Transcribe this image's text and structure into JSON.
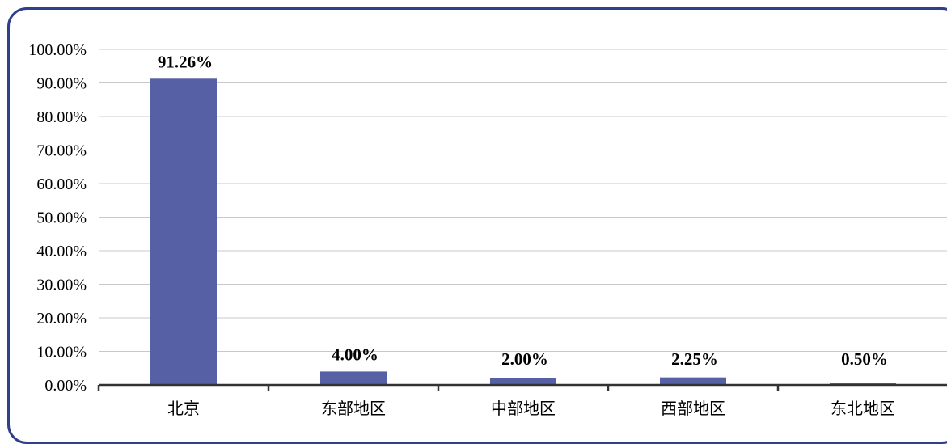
{
  "chart_data": {
    "type": "bar",
    "categories": [
      "北京",
      "东部地区",
      "中部地区",
      "西部地区",
      "东北地区"
    ],
    "values": [
      91.26,
      4.0,
      2.0,
      2.25,
      0.5
    ],
    "value_labels": [
      "91.26%",
      "4.00%",
      "2.00%",
      "2.25%",
      "0.50%"
    ],
    "y_ticks": [
      "0.00%",
      "10.00%",
      "20.00%",
      "30.00%",
      "40.00%",
      "50.00%",
      "60.00%",
      "70.00%",
      "80.00%",
      "90.00%",
      "100.00%"
    ],
    "ylim": [
      0,
      100
    ],
    "title": "",
    "xlabel": "",
    "ylabel": "",
    "grid": true,
    "legend": "none",
    "bar_color": "#5660a4",
    "grid_color": "#c8c8c8",
    "axis_color": "#333333",
    "frame_color": "#2f3f8c"
  }
}
